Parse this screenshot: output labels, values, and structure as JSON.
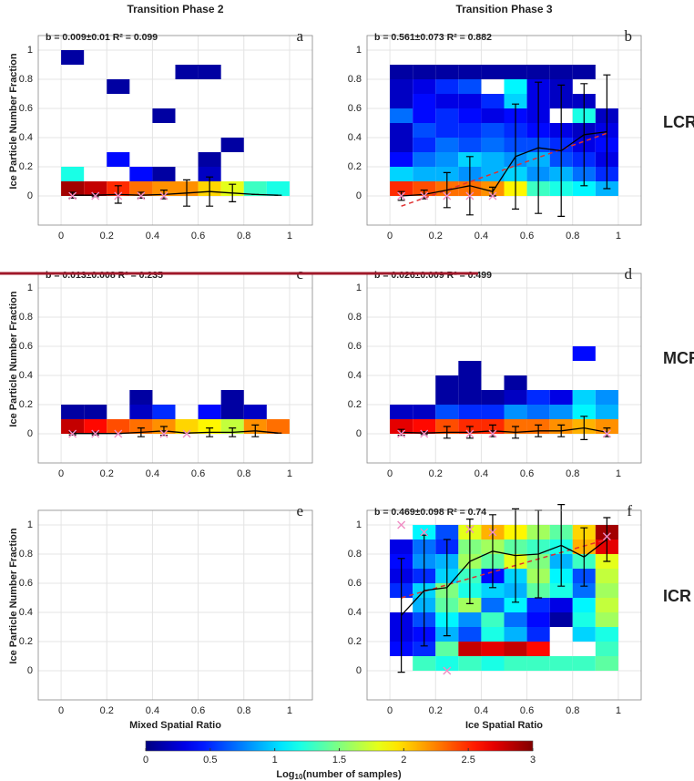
{
  "chart_data": {
    "type": "heatmap-panels",
    "xlim": [
      -0.1,
      1.1
    ],
    "ylim": [
      -0.2,
      1.1
    ],
    "xticks": [
      0,
      0.2,
      0.4,
      0.6,
      0.8,
      1
    ],
    "yticks": [
      0,
      0.2,
      0.4,
      0.6,
      0.8,
      1
    ],
    "grid": true,
    "x_edges": [
      0,
      0.1,
      0.2,
      0.3,
      0.4,
      0.5,
      0.6,
      0.7,
      0.8,
      0.9,
      1
    ],
    "y_edges": [
      0,
      0.1,
      0.2,
      0.3,
      0.4,
      0.5,
      0.6,
      0.7,
      0.8,
      0.9,
      1
    ],
    "colormap": "jet",
    "mean_color": "#000000",
    "median_color": "#f08cc4",
    "fit_color": "#e03030",
    "row_labels": [
      "LCR",
      "MCR",
      "ICR"
    ],
    "colorbar": {
      "clim": [
        0,
        3
      ],
      "ticks": [
        0,
        0.5,
        1,
        1.5,
        2,
        2.5,
        3
      ],
      "label": [
        "Log",
        "10",
        "(number of samples)"
      ]
    },
    "panels": [
      {
        "title": "Transition Phase 2",
        "letter": "a",
        "annotation": "b = 0.009±0.01   R² = 0.099",
        "ylabel": "Ice Particle Number Fraction",
        "z": [
          [
            2.9,
            2.8,
            2.5,
            2.3,
            2.2,
            2.2,
            2.0,
            1.8,
            1.3,
            1.2
          ],
          [
            1.2,
            null,
            null,
            0.4,
            0.1,
            null,
            0.2,
            null,
            null,
            null
          ],
          [
            null,
            null,
            0.4,
            null,
            null,
            null,
            0.1,
            null,
            null,
            null
          ],
          [
            null,
            null,
            null,
            null,
            null,
            null,
            null,
            0.1,
            null,
            null
          ],
          [
            null,
            null,
            null,
            null,
            null,
            null,
            null,
            null,
            null,
            null
          ],
          [
            null,
            null,
            null,
            null,
            0.1,
            null,
            null,
            null,
            null,
            null
          ],
          [
            null,
            null,
            null,
            null,
            null,
            null,
            null,
            null,
            null,
            null
          ],
          [
            null,
            null,
            0.1,
            null,
            null,
            null,
            null,
            null,
            null,
            null
          ],
          [
            null,
            null,
            null,
            null,
            null,
            0.1,
            0.1,
            null,
            null,
            null
          ],
          [
            0.1,
            null,
            null,
            null,
            null,
            null,
            null,
            null,
            null,
            null
          ]
        ],
        "mean": {
          "x": [
            0.05,
            0.15,
            0.25,
            0.35,
            0.45,
            0.55,
            0.65,
            0.75,
            0.85,
            0.95
          ],
          "y": [
            0.005,
            0.005,
            0.01,
            0.005,
            0.01,
            0.02,
            0.03,
            0.02,
            0.01,
            0.005
          ],
          "err": [
            0.02,
            0.01,
            0.06,
            0.02,
            0.03,
            0.09,
            0.1,
            0.06,
            0,
            0
          ]
        },
        "medians": {
          "x": [
            0.05,
            0.15,
            0.25,
            0.35,
            0.45
          ],
          "y": [
            0,
            0,
            0,
            0,
            0
          ]
        }
      },
      {
        "title": "Transition Phase 3",
        "letter": "b",
        "annotation": "b = 0.561±0.073   R² = 0.882",
        "z": [
          [
            2.5,
            2.4,
            2.3,
            2.3,
            2.2,
            1.9,
            1.3,
            1.2,
            1.1,
            0.9
          ],
          [
            1.0,
            0.9,
            0.9,
            0.8,
            0.9,
            1.0,
            0.8,
            0.9,
            0.7,
            0.5
          ],
          [
            0.4,
            0.7,
            0.8,
            1.0,
            0.9,
            0.8,
            0.9,
            0.6,
            0.5,
            0.3
          ],
          [
            0.2,
            0.5,
            0.7,
            0.6,
            0.7,
            0.6,
            0.6,
            0.5,
            0.3,
            0.4
          ],
          [
            0.2,
            0.6,
            0.5,
            0.5,
            0.6,
            0.5,
            0.4,
            0.3,
            0.2,
            0.3
          ],
          [
            0.7,
            0.4,
            0.5,
            0.4,
            0.3,
            0.4,
            0.3,
            null,
            1.2,
            0.2
          ],
          [
            0.2,
            0.4,
            0.3,
            0.3,
            0.5,
            1.0,
            0.3,
            0.2,
            0.2,
            null
          ],
          [
            0.2,
            0.3,
            0.5,
            0.6,
            null,
            1.1,
            0.3,
            0.2,
            null,
            null
          ],
          [
            0.1,
            0.1,
            0.1,
            0.1,
            0.1,
            0.1,
            0.1,
            0.1,
            0.1,
            null
          ]
        ],
        "mean": {
          "x": [
            0.05,
            0.15,
            0.25,
            0.35,
            0.45,
            0.55,
            0.65,
            0.75,
            0.85,
            0.95
          ],
          "y": [
            0,
            0.01,
            0.04,
            0.07,
            0.03,
            0.27,
            0.33,
            0.31,
            0.42,
            0.44
          ],
          "err": [
            0.03,
            0.03,
            0.12,
            0.2,
            0.03,
            0.36,
            0.45,
            0.45,
            0.35,
            0.39
          ]
        },
        "medians": {
          "x": [
            0.05,
            0.15,
            0.25,
            0.35,
            0.45
          ],
          "y": [
            0,
            0,
            0,
            0,
            0
          ]
        },
        "fit": {
          "x": [
            0.05,
            0.95
          ],
          "y": [
            -0.07,
            0.43
          ]
        }
      },
      {
        "letter": "c",
        "annotation": "b = 0.013±0.008   R² = 0.235",
        "ylabel": "Ice Particle Number Fraction",
        "z": [
          [
            2.8,
            2.6,
            2.4,
            2.3,
            2.2,
            2.0,
            1.9,
            1.7,
            2.2,
            2.3
          ],
          [
            0.1,
            0.1,
            null,
            0.2,
            0.5,
            null,
            0.4,
            0.1,
            0.2,
            null
          ],
          [
            null,
            null,
            null,
            0.1,
            null,
            null,
            null,
            0.1,
            null,
            null
          ]
        ],
        "mean": {
          "x": [
            0.05,
            0.15,
            0.25,
            0.35,
            0.45,
            0.55,
            0.65,
            0.75,
            0.85,
            0.95
          ],
          "y": [
            0.002,
            0.002,
            0.002,
            0.01,
            0.02,
            0.005,
            0.01,
            0.01,
            0.02,
            0.005
          ],
          "err": [
            0.01,
            0.01,
            0,
            0.03,
            0.03,
            0,
            0.03,
            0.03,
            0.04,
            0
          ]
        },
        "medians": {
          "x": [
            0.05,
            0.15,
            0.25,
            0.45,
            0.55
          ],
          "y": [
            0,
            0,
            0,
            0,
            0
          ]
        }
      },
      {
        "letter": "d",
        "annotation": "b = 0.026±0.009   R² = 0.499",
        "z": [
          [
            2.7,
            2.6,
            2.4,
            2.5,
            2.5,
            2.3,
            2.3,
            2.2,
            2.1,
            2.2
          ],
          [
            0.2,
            0.2,
            0.6,
            0.5,
            0.5,
            0.8,
            0.7,
            0.8,
            1.1,
            0.9
          ],
          [
            null,
            null,
            0.1,
            0.1,
            0.1,
            0.2,
            0.5,
            0.3,
            1.0,
            0.8
          ],
          [
            null,
            null,
            0.1,
            0.1,
            null,
            0.1,
            null,
            null,
            null,
            null
          ],
          [
            null,
            null,
            null,
            0.1,
            null,
            null,
            null,
            null,
            null,
            null
          ],
          [
            null,
            null,
            null,
            null,
            null,
            null,
            null,
            null,
            0.4,
            null
          ]
        ],
        "mean": {
          "x": [
            0.05,
            0.15,
            0.25,
            0.35,
            0.45,
            0.55,
            0.65,
            0.75,
            0.85,
            0.95
          ],
          "y": [
            0.01,
            0.005,
            0.01,
            0.01,
            0.02,
            0.01,
            0.02,
            0.02,
            0.04,
            0.01
          ],
          "err": [
            0.02,
            0.01,
            0.04,
            0.04,
            0.04,
            0.04,
            0.04,
            0.04,
            0.08,
            0.03
          ]
        },
        "medians": {
          "x": [
            0.05,
            0.15,
            0.35,
            0.45,
            0.95
          ],
          "y": [
            0,
            0,
            0,
            0,
            0
          ]
        }
      },
      {
        "letter": "e",
        "ylabel": "Ice Particle Number Fraction",
        "xlabel": "Mixed Spatial Ratio"
      },
      {
        "letter": "f",
        "annotation": "b = 0.469±0.098   R² = 0.74",
        "xlabel": "Ice Spatial Ratio",
        "z": [
          [
            null,
            1.3,
            1.2,
            1.3,
            1.2,
            1.3,
            1.3,
            1.3,
            1.3,
            1.4
          ],
          [
            0.4,
            0.5,
            1.4,
            2.8,
            2.7,
            2.8,
            2.6,
            null,
            null,
            1.3
          ],
          [
            0.3,
            0.4,
            0.9,
            0.6,
            1.2,
            0.9,
            0.5,
            null,
            1.0,
            1.2
          ],
          [
            0.3,
            0.6,
            1.1,
            0.8,
            1.3,
            0.7,
            0.4,
            0.1,
            1.2,
            1.6
          ],
          [
            null,
            0.9,
            1.4,
            1.6,
            0.7,
            1.1,
            0.5,
            0.3,
            1.1,
            1.7
          ],
          [
            0.5,
            1.0,
            1.5,
            1.2,
            1.0,
            0.9,
            1.4,
            1.2,
            0.7,
            1.6
          ],
          [
            0.3,
            0.5,
            1.0,
            1.3,
            0.4,
            1.0,
            1.6,
            1.1,
            0.6,
            1.7
          ],
          [
            0.4,
            0.8,
            0.9,
            1.6,
            1.4,
            1.8,
            1.5,
            0.9,
            1.3,
            1.8
          ],
          [
            0.3,
            0.7,
            0.5,
            1.5,
            1.6,
            1.4,
            1.3,
            1.2,
            2.1,
            2.7
          ],
          [
            null,
            1.1,
            0.6,
            1.8,
            2.1,
            1.9,
            1.6,
            1.4,
            2.0,
            2.9
          ]
        ],
        "mean": {
          "x": [
            0.05,
            0.15,
            0.25,
            0.35,
            0.45,
            0.55,
            0.65,
            0.75,
            0.85,
            0.95
          ],
          "y": [
            0.38,
            0.55,
            0.57,
            0.75,
            0.82,
            0.79,
            0.8,
            0.86,
            0.78,
            0.9
          ],
          "err": [
            0.39,
            0.38,
            0.33,
            0.29,
            0.25,
            0.32,
            0.3,
            0.28,
            0.2,
            0.15
          ]
        },
        "medians": {
          "x": [
            0.05,
            0.15,
            0.25,
            0.35,
            0.45,
            0.95
          ],
          "y": [
            1.0,
            0.95,
            0,
            0.97,
            0.95,
            0.92
          ]
        },
        "fit": {
          "x": [
            0.05,
            0.95
          ],
          "y": [
            0.5,
            0.9
          ]
        }
      }
    ]
  }
}
